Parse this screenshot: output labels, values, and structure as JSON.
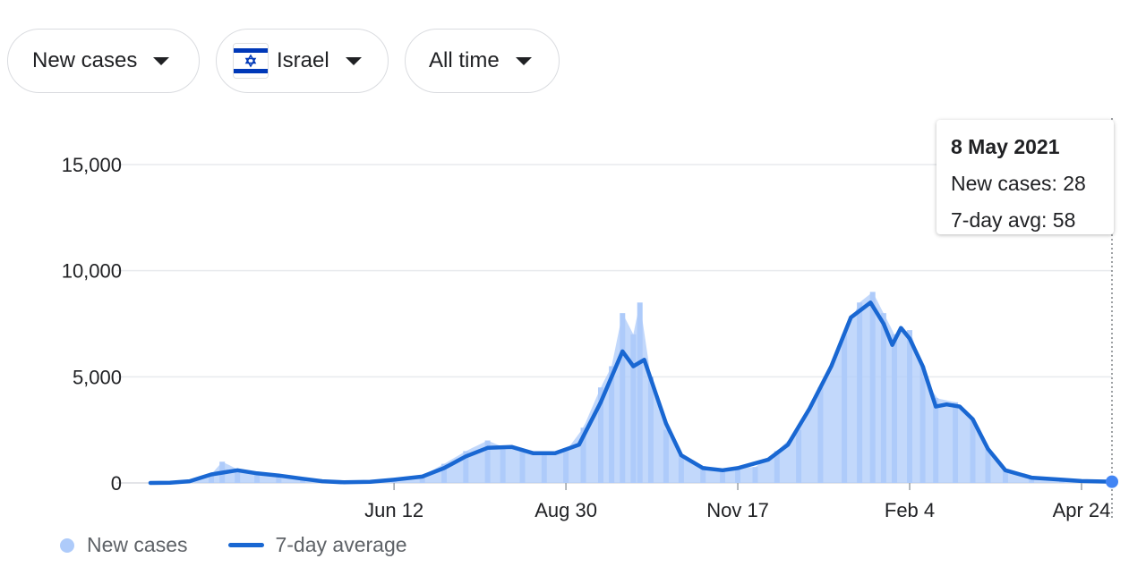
{
  "filters": {
    "metric": "New cases",
    "location": "Israel",
    "time_range": "All time"
  },
  "icons": {
    "flag": "israel-flag-icon",
    "caret": "caret-down-icon"
  },
  "colors": {
    "bars": "#aecbfa",
    "line": "#1967d2",
    "grid": "#e8eaed",
    "flag_blue": "#0038b8"
  },
  "tooltip": {
    "date": "8 May 2021",
    "new_cases_text": "New cases: 28",
    "avg_text": "7-day avg: 58"
  },
  "legend": {
    "bars_label": "New cases",
    "line_label": "7-day average"
  },
  "chart_data": {
    "type": "bar",
    "title": "",
    "xlabel": "",
    "ylabel": "",
    "ylim": [
      0,
      15000
    ],
    "yticks": [
      0,
      5000,
      10000,
      15000
    ],
    "ytick_labels": [
      "0",
      "5,000",
      "10,000",
      "15,000"
    ],
    "x_ticks": [
      {
        "label": "Jun 12",
        "date": "2020-06-12"
      },
      {
        "label": "Aug 30",
        "date": "2020-08-30"
      },
      {
        "label": "Nov 17",
        "date": "2020-11-17"
      },
      {
        "label": "Feb 4",
        "date": "2021-02-04"
      },
      {
        "label": "Apr 24",
        "date": "2021-04-24"
      }
    ],
    "x_range": [
      "2020-02-21",
      "2021-05-08"
    ],
    "grid": true,
    "legend_position": "bottom-left",
    "series": [
      {
        "name": "New cases",
        "style": "bars",
        "points": [
          [
            "2020-02-21",
            0
          ],
          [
            "2020-03-10",
            80
          ],
          [
            "2020-03-20",
            400
          ],
          [
            "2020-03-25",
            1000
          ],
          [
            "2020-04-01",
            650
          ],
          [
            "2020-04-10",
            500
          ],
          [
            "2020-04-20",
            250
          ],
          [
            "2020-05-01",
            150
          ],
          [
            "2020-05-20",
            30
          ],
          [
            "2020-05-30",
            60
          ],
          [
            "2020-06-12",
            150
          ],
          [
            "2020-06-25",
            350
          ],
          [
            "2020-07-05",
            900
          ],
          [
            "2020-07-15",
            1500
          ],
          [
            "2020-07-25",
            2000
          ],
          [
            "2020-08-01",
            1700
          ],
          [
            "2020-08-10",
            1600
          ],
          [
            "2020-08-20",
            1400
          ],
          [
            "2020-08-30",
            1500
          ],
          [
            "2020-09-07",
            2600
          ],
          [
            "2020-09-15",
            4500
          ],
          [
            "2020-09-20",
            5500
          ],
          [
            "2020-09-25",
            8000
          ],
          [
            "2020-09-30",
            7000
          ],
          [
            "2020-10-03",
            8500
          ],
          [
            "2020-10-08",
            5000
          ],
          [
            "2020-10-15",
            2500
          ],
          [
            "2020-10-22",
            1300
          ],
          [
            "2020-11-01",
            800
          ],
          [
            "2020-11-10",
            650
          ],
          [
            "2020-11-17",
            700
          ],
          [
            "2020-11-25",
            750
          ],
          [
            "2020-12-05",
            1500
          ],
          [
            "2020-12-15",
            2500
          ],
          [
            "2020-12-25",
            4500
          ],
          [
            "2021-01-05",
            7000
          ],
          [
            "2021-01-12",
            8500
          ],
          [
            "2021-01-18",
            9000
          ],
          [
            "2021-01-23",
            8000
          ],
          [
            "2021-01-28",
            7000
          ],
          [
            "2021-02-04",
            7200
          ],
          [
            "2021-02-10",
            5500
          ],
          [
            "2021-02-16",
            4000
          ],
          [
            "2021-02-25",
            3800
          ],
          [
            "2021-03-05",
            3000
          ],
          [
            "2021-03-12",
            1600
          ],
          [
            "2021-03-20",
            600
          ],
          [
            "2021-04-01",
            250
          ],
          [
            "2021-04-15",
            150
          ],
          [
            "2021-04-24",
            80
          ],
          [
            "2021-05-08",
            28
          ]
        ]
      },
      {
        "name": "7-day average",
        "style": "line",
        "points": [
          [
            "2020-02-21",
            0
          ],
          [
            "2020-03-01",
            10
          ],
          [
            "2020-03-10",
            80
          ],
          [
            "2020-03-20",
            400
          ],
          [
            "2020-04-01",
            600
          ],
          [
            "2020-04-10",
            450
          ],
          [
            "2020-04-20",
            350
          ],
          [
            "2020-05-01",
            200
          ],
          [
            "2020-05-10",
            80
          ],
          [
            "2020-05-20",
            30
          ],
          [
            "2020-06-01",
            50
          ],
          [
            "2020-06-12",
            150
          ],
          [
            "2020-06-25",
            300
          ],
          [
            "2020-07-05",
            700
          ],
          [
            "2020-07-15",
            1250
          ],
          [
            "2020-07-25",
            1650
          ],
          [
            "2020-08-05",
            1700
          ],
          [
            "2020-08-15",
            1400
          ],
          [
            "2020-08-25",
            1400
          ],
          [
            "2020-09-05",
            1800
          ],
          [
            "2020-09-15",
            3800
          ],
          [
            "2020-09-25",
            6200
          ],
          [
            "2020-09-30",
            5500
          ],
          [
            "2020-10-05",
            5800
          ],
          [
            "2020-10-15",
            2800
          ],
          [
            "2020-10-22",
            1300
          ],
          [
            "2020-11-01",
            700
          ],
          [
            "2020-11-10",
            600
          ],
          [
            "2020-11-17",
            700
          ],
          [
            "2020-12-01",
            1100
          ],
          [
            "2020-12-10",
            1800
          ],
          [
            "2020-12-20",
            3500
          ],
          [
            "2020-12-30",
            5500
          ],
          [
            "2021-01-08",
            7800
          ],
          [
            "2021-01-17",
            8500
          ],
          [
            "2021-01-23",
            7500
          ],
          [
            "2021-01-27",
            6500
          ],
          [
            "2021-01-31",
            7300
          ],
          [
            "2021-02-04",
            6800
          ],
          [
            "2021-02-10",
            5500
          ],
          [
            "2021-02-16",
            3600
          ],
          [
            "2021-02-21",
            3700
          ],
          [
            "2021-02-27",
            3600
          ],
          [
            "2021-03-05",
            3000
          ],
          [
            "2021-03-12",
            1600
          ],
          [
            "2021-03-20",
            600
          ],
          [
            "2021-04-01",
            250
          ],
          [
            "2021-04-15",
            150
          ],
          [
            "2021-04-24",
            90
          ],
          [
            "2021-05-08",
            58
          ]
        ]
      }
    ],
    "highlight": {
      "date": "2021-05-08",
      "new_cases": 28,
      "avg": 58
    }
  }
}
